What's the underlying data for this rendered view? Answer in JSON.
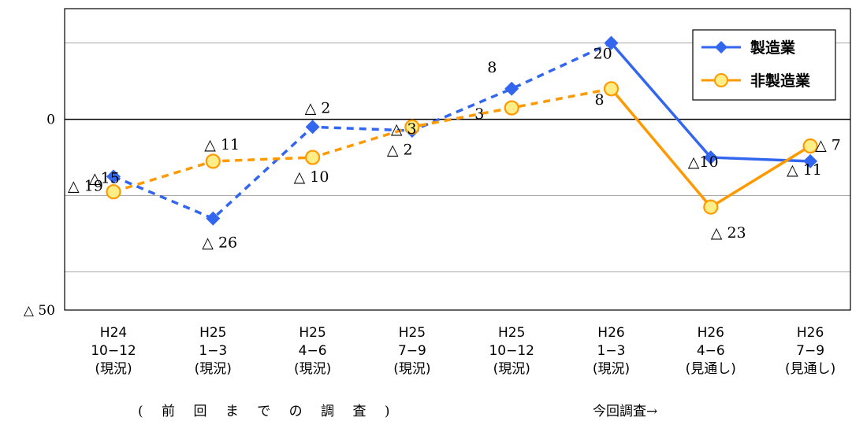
{
  "chart_data": {
    "type": "line",
    "categories": [
      [
        "H24",
        "10−12",
        "(現況)"
      ],
      [
        "H25",
        "1−3",
        "(現況)"
      ],
      [
        "H25",
        "4−6",
        "(現況)"
      ],
      [
        "H25",
        "7−9",
        "(現況)"
      ],
      [
        "H25",
        "10−12",
        "(現況)"
      ],
      [
        "H26",
        "1−3",
        "(現況)"
      ],
      [
        "H26",
        "4−6",
        "(見通し)"
      ],
      [
        "H26",
        "7−9",
        "(見通し)"
      ]
    ],
    "yticks": [
      {
        "value": 0,
        "label": "0"
      },
      {
        "value": -50,
        "label": "△ 50"
      }
    ],
    "ylim": [
      -50,
      29
    ],
    "grid": true,
    "legend": "top-right",
    "series": [
      {
        "name": "製造業",
        "color": "#3366ee",
        "marker": "diamond",
        "values": [
          -15,
          -26,
          -2,
          -3,
          8,
          20,
          -10,
          -11
        ],
        "labels": [
          "△15",
          "△ 26",
          "△ 2",
          "△ 3",
          "8",
          "20",
          "△10",
          "△ 11"
        ]
      },
      {
        "name": "非製造業",
        "color": "#ff9900",
        "marker": "circle",
        "values": [
          -19,
          -11,
          -10,
          -2,
          3,
          8,
          -23,
          -7
        ],
        "labels": [
          "△ 19",
          "△ 11",
          "△ 10",
          "△ 2",
          "3",
          "8",
          "△ 23",
          "△ 7"
        ]
      }
    ],
    "dashed_until_index": 5,
    "annotations": {
      "previous": "( 前 回 ま で の 調 査 )",
      "current": "今回調査→"
    }
  }
}
